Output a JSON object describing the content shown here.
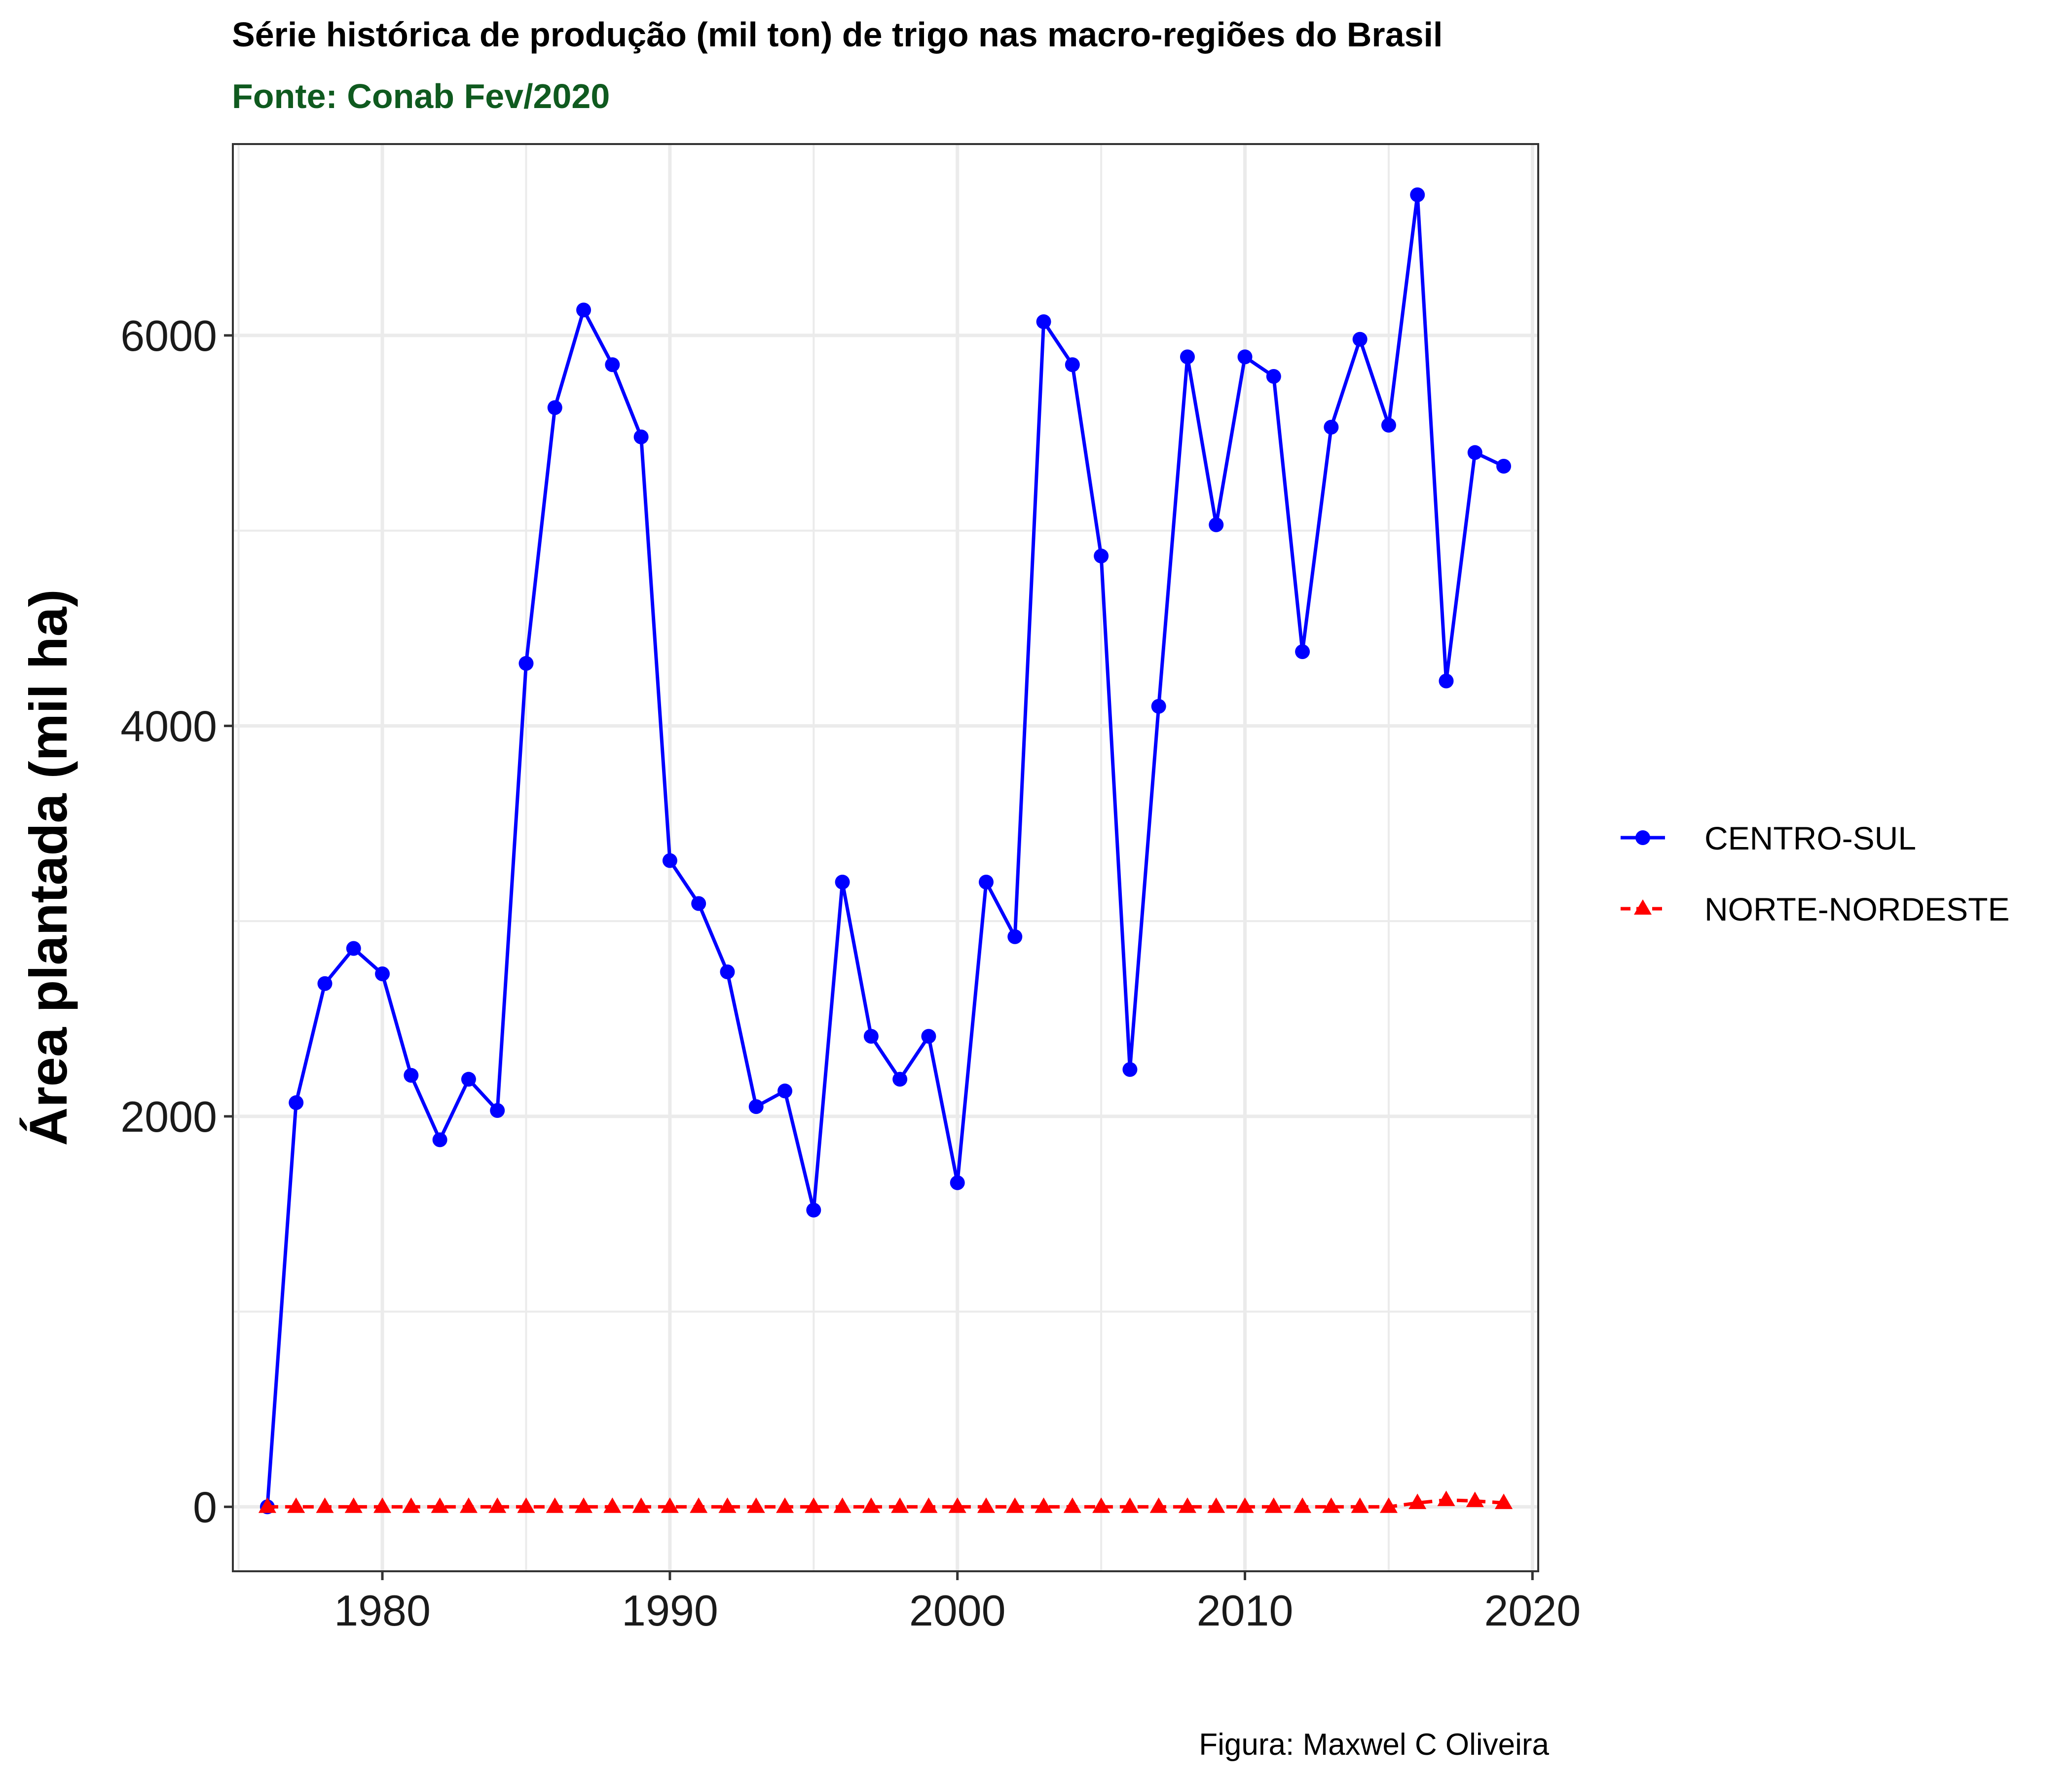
{
  "colors": {
    "subtitle": "#0f5a1f",
    "centro_sul": "#0000ff",
    "norte_nordeste": "#ff0000",
    "grid": "#ebebeb",
    "panel_border": "#333333"
  },
  "chart_data": {
    "type": "line",
    "title": "Série histórica de produção (mil ton) de trigo nas macro-regiões do Brasil",
    "subtitle": "Fonte: Conab Fev/2020",
    "caption": "Figura: Maxwel C Oliveira",
    "xlabel": "",
    "ylabel": "Área plantada (mil ha)",
    "xlim": [
      1974.8,
      2020.2
    ],
    "ylim": [
      -330,
      6980
    ],
    "x_ticks": [
      1980,
      1990,
      2000,
      2010,
      2020
    ],
    "y_ticks": [
      0,
      2000,
      4000,
      6000
    ],
    "x_tick_labels": [
      "1980",
      "1990",
      "2000",
      "2010",
      "2020"
    ],
    "y_tick_labels": [
      "0",
      "2000",
      "4000",
      "6000"
    ],
    "grid": true,
    "legend_position": "right",
    "x": [
      1976,
      1977,
      1978,
      1979,
      1980,
      1981,
      1982,
      1983,
      1984,
      1985,
      1986,
      1987,
      1988,
      1989,
      1990,
      1991,
      1992,
      1993,
      1994,
      1995,
      1996,
      1997,
      1998,
      1999,
      2000,
      2001,
      2002,
      2003,
      2004,
      2005,
      2006,
      2007,
      2008,
      2009,
      2010,
      2011,
      2012,
      2013,
      2014,
      2015,
      2016,
      2017,
      2018,
      2019
    ],
    "series": [
      {
        "name": "CENTRO-SUL",
        "marker": "circle",
        "line_style": "solid",
        "values": [
          0,
          2070,
          2680,
          2860,
          2730,
          2210,
          1880,
          2190,
          2030,
          4320,
          5630,
          6130,
          5850,
          5480,
          3310,
          3090,
          2740,
          2050,
          2130,
          1520,
          3200,
          2410,
          2190,
          2410,
          1660,
          3200,
          2920,
          6070,
          5850,
          4870,
          2240,
          4100,
          5890,
          5030,
          5890,
          5790,
          4380,
          5530,
          5980,
          5540,
          6720,
          4230,
          5400,
          5330
        ]
      },
      {
        "name": "NORTE-NORDESTE",
        "marker": "triangle",
        "line_style": "dashed",
        "values": [
          0,
          0,
          0,
          0,
          0,
          0,
          0,
          0,
          0,
          0,
          0,
          0,
          0,
          0,
          0,
          0,
          0,
          0,
          0,
          0,
          0,
          0,
          0,
          0,
          0,
          0,
          0,
          0,
          0,
          0,
          0,
          0,
          0,
          0,
          0,
          0,
          0,
          0,
          0,
          0,
          20,
          35,
          30,
          20
        ]
      }
    ]
  }
}
